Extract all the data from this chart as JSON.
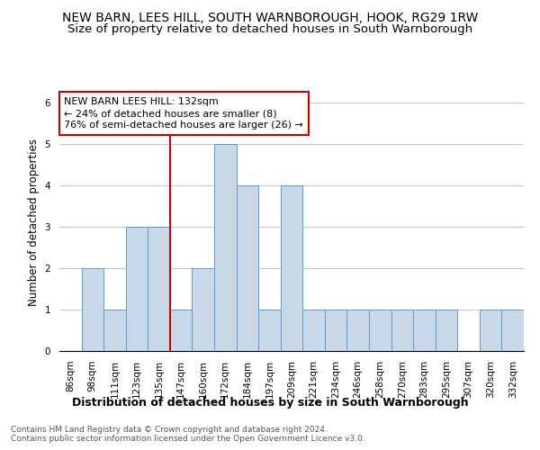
{
  "title": "NEW BARN, LEES HILL, SOUTH WARNBOROUGH, HOOK, RG29 1RW",
  "subtitle": "Size of property relative to detached houses in South Warnborough",
  "xlabel": "Distribution of detached houses by size in South Warnborough",
  "ylabel": "Number of detached properties",
  "footer1": "Contains HM Land Registry data © Crown copyright and database right 2024.",
  "footer2": "Contains public sector information licensed under the Open Government Licence v3.0.",
  "bins": [
    "86sqm",
    "98sqm",
    "111sqm",
    "123sqm",
    "135sqm",
    "147sqm",
    "160sqm",
    "172sqm",
    "184sqm",
    "197sqm",
    "209sqm",
    "221sqm",
    "234sqm",
    "246sqm",
    "258sqm",
    "270sqm",
    "283sqm",
    "295sqm",
    "307sqm",
    "320sqm",
    "332sqm"
  ],
  "values": [
    0,
    2,
    1,
    3,
    3,
    1,
    2,
    5,
    4,
    1,
    4,
    1,
    1,
    1,
    1,
    1,
    1,
    1,
    0,
    1,
    1
  ],
  "bar_color": "#c9d9e8",
  "bar_edge_color": "#5b9bd5",
  "grid_color": "#c8c8c8",
  "subject_line_color": "#cc0000",
  "subject_bin_index": 4,
  "annotation_title": "NEW BARN LEES HILL: 132sqm",
  "annotation_line1": "← 24% of detached houses are smaller (8)",
  "annotation_line2": "76% of semi-detached houses are larger (26) →",
  "annotation_box_color": "#ffffff",
  "annotation_box_edge": "#cc0000",
  "ylim": [
    0,
    6.2
  ],
  "yticks": [
    0,
    1,
    2,
    3,
    4,
    5,
    6
  ],
  "title_fontsize": 10,
  "subtitle_fontsize": 9.5,
  "xlabel_fontsize": 9,
  "ylabel_fontsize": 8.5,
  "tick_fontsize": 7.5,
  "annotation_fontsize": 8,
  "footer_fontsize": 6.5
}
